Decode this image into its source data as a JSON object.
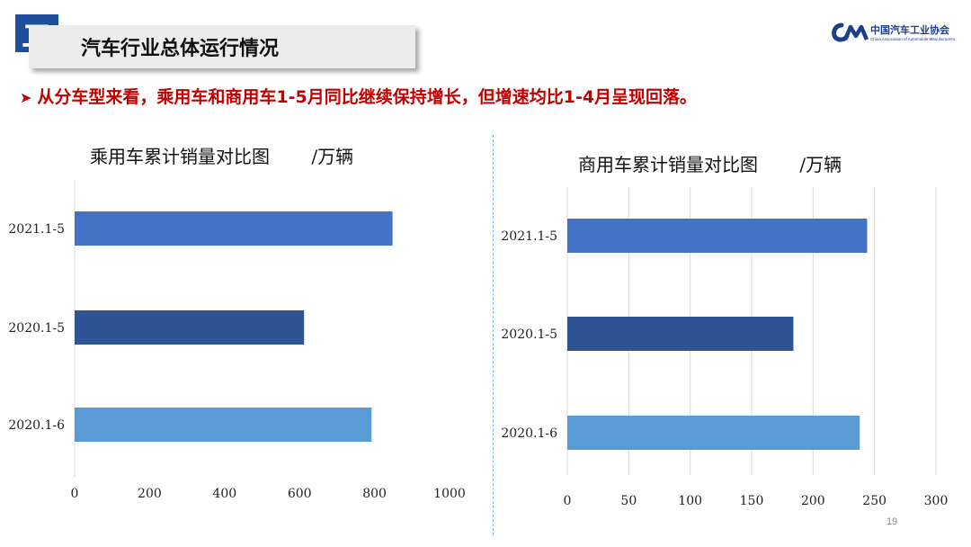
{
  "header": {
    "section_number": "二",
    "title": "汽车行业总体运行情况",
    "logo_cn": "中国汽车工业协会",
    "logo_en": "China Association of Automobile Manufacturers"
  },
  "bullet": {
    "icon": "arrow-right-icon",
    "text": "从分车型来看，乘用车和商用车1-5月同比继续保持增长，但增速均比1-4月呈现回落。"
  },
  "page_number": "19",
  "colors": {
    "series_light": "#5b9bd5",
    "series_mid": "#4472c4",
    "series_dark": "#2f5496",
    "accent": "#c00000"
  },
  "chart_data": [
    {
      "type": "bar",
      "orientation": "horizontal",
      "title": "乘用车累计销量对比图",
      "unit_label": "/万辆",
      "categories": [
        "2021.1-5",
        "2020.1-5",
        "2020.1-6"
      ],
      "values": [
        848,
        612,
        792
      ],
      "bar_colors": [
        "#4472c4",
        "#2f5496",
        "#5b9bd5"
      ],
      "xlim": [
        0,
        1000
      ],
      "xticks": [
        0,
        200,
        400,
        600,
        800,
        1000
      ],
      "grid": false
    },
    {
      "type": "bar",
      "orientation": "horizontal",
      "title": "商用车累计销量对比图",
      "unit_label": "/万辆",
      "categories": [
        "2021.1-5",
        "2020.1-5",
        "2020.1-6"
      ],
      "values": [
        244,
        184,
        238
      ],
      "bar_colors": [
        "#4472c4",
        "#2f5496",
        "#5b9bd5"
      ],
      "xlim": [
        0,
        300
      ],
      "xticks": [
        0,
        50,
        100,
        150,
        200,
        250,
        300
      ],
      "grid": true
    }
  ]
}
